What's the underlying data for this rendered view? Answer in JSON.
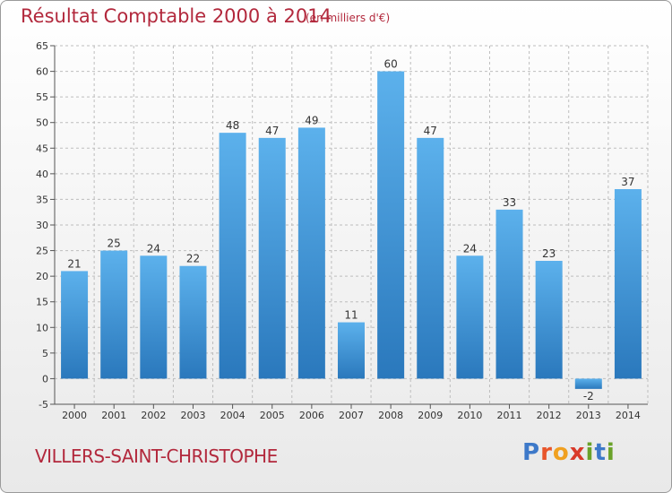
{
  "header": {
    "title": "Résultat Comptable 2000 à 2014",
    "subtitle": "(en milliers d'€)"
  },
  "footer": {
    "commune": "VILLERS-SAINT-CHRISTOPHE",
    "logo_letters": [
      "P",
      "r",
      "o",
      "x",
      "i",
      "t",
      "i"
    ],
    "logo_colors": [
      "#3d79c9",
      "#e8552a",
      "#f0a020",
      "#d93a2a",
      "#6aa22a",
      "#3d79c9",
      "#6aa22a"
    ]
  },
  "colors": {
    "bar_light": "#5cb1ec",
    "bar_dark": "#2a78bc",
    "title": "#b2283c",
    "grid": "#bdbdbd"
  },
  "chart_data": {
    "type": "bar",
    "title": "Résultat Comptable 2000 à 2014",
    "subtitle": "(en milliers d'€)",
    "xlabel": "",
    "ylabel": "",
    "categories": [
      "2000",
      "2001",
      "2002",
      "2003",
      "2004",
      "2005",
      "2006",
      "2007",
      "2008",
      "2009",
      "2010",
      "2011",
      "2012",
      "2013",
      "2014"
    ],
    "values": [
      21,
      25,
      24,
      22,
      48,
      47,
      49,
      11,
      60,
      47,
      24,
      33,
      23,
      -2,
      37
    ],
    "ylim": [
      -5,
      65
    ],
    "yticks": [
      -5,
      0,
      5,
      10,
      15,
      20,
      25,
      30,
      35,
      40,
      45,
      50,
      55,
      60,
      65
    ],
    "grid": true,
    "legend": "none"
  }
}
